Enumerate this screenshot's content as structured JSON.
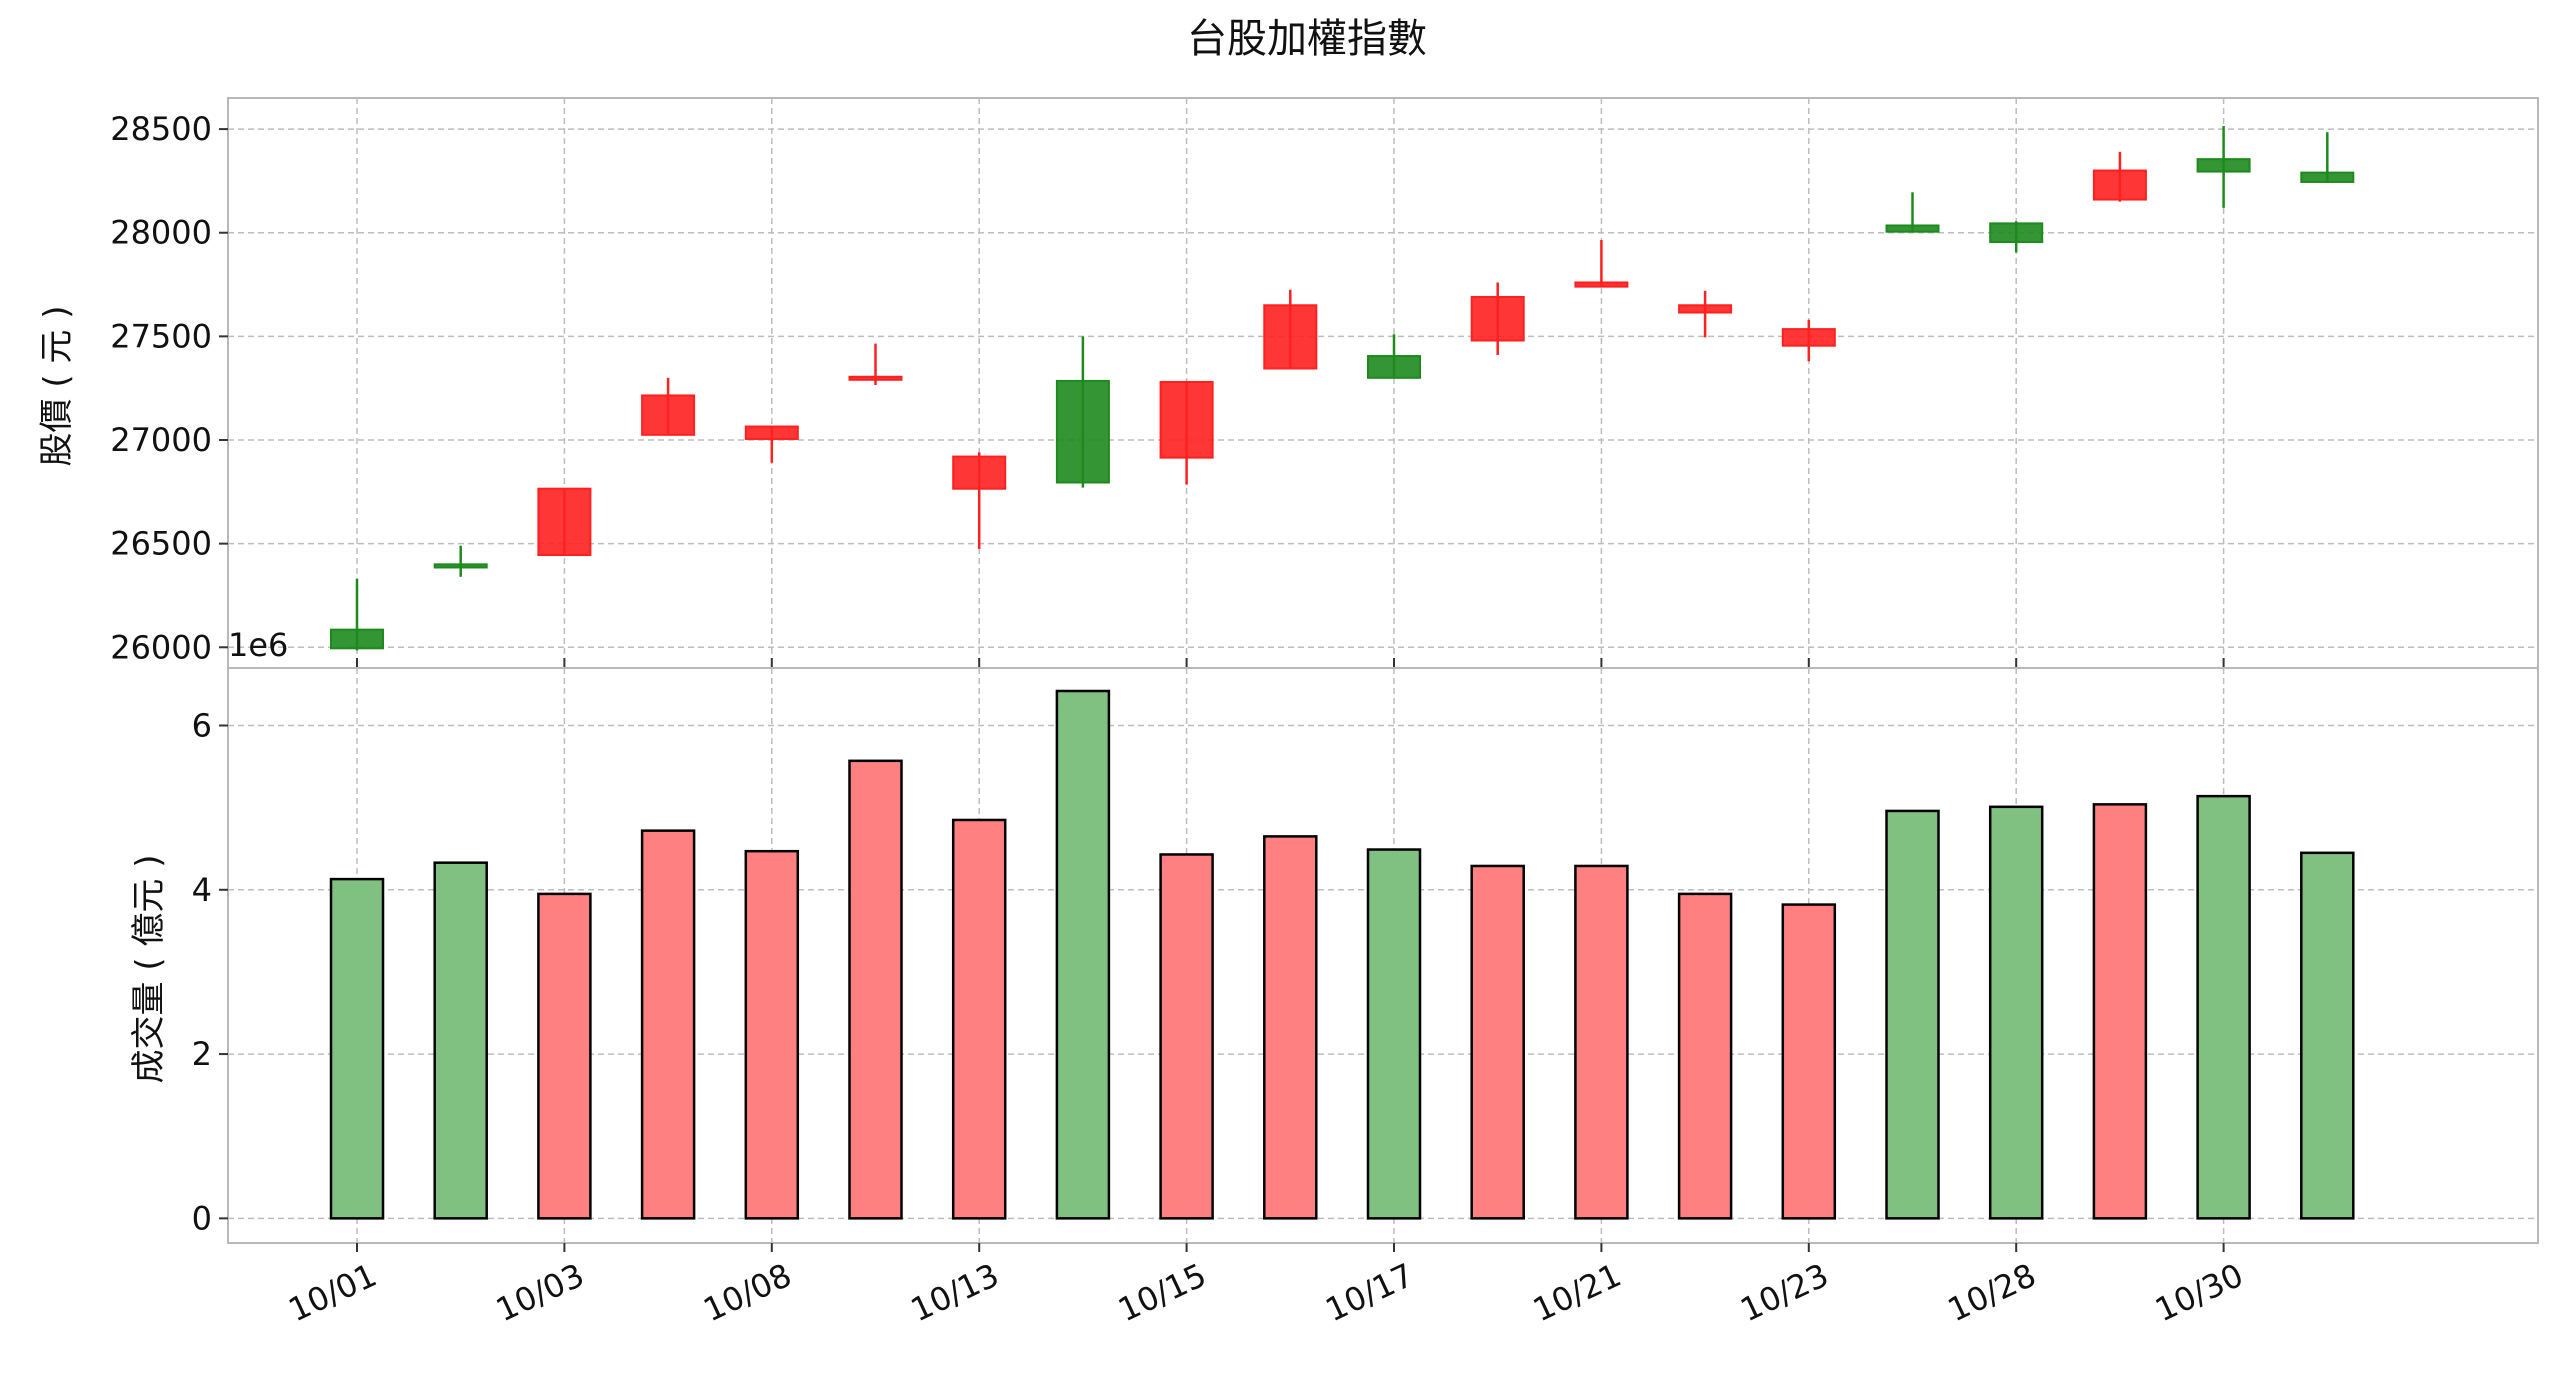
{
  "chart_data": [
    {
      "type": "candlestick",
      "title": "台股加權指數",
      "ylabel": "股價 ( 元 )",
      "xlabel": "",
      "ylim": [
        25900,
        28650
      ],
      "yticks": [
        26000,
        26500,
        27000,
        27500,
        28000,
        28500
      ],
      "offset_text": "1e6",
      "grid": true,
      "up_color": "#ff2020",
      "down_color": "#1e8a1e",
      "candles": [
        {
          "open": 25995,
          "high": 26330,
          "low": 25985,
          "close": 26085,
          "color": "green"
        },
        {
          "open": 26385,
          "high": 26490,
          "low": 26340,
          "close": 26400,
          "color": "green"
        },
        {
          "open": 26445,
          "high": 26765,
          "low": 26445,
          "close": 26765,
          "color": "red"
        },
        {
          "open": 27025,
          "high": 27300,
          "low": 27025,
          "close": 27215,
          "color": "red"
        },
        {
          "open": 27005,
          "high": 27065,
          "low": 26890,
          "close": 27065,
          "color": "red"
        },
        {
          "open": 27300,
          "high": 27465,
          "low": 27265,
          "close": 27305,
          "color": "red"
        },
        {
          "open": 26765,
          "high": 26940,
          "low": 26475,
          "close": 26920,
          "color": "red"
        },
        {
          "open": 27285,
          "high": 27500,
          "low": 26770,
          "close": 26795,
          "color": "green"
        },
        {
          "open": 26915,
          "high": 27285,
          "low": 26785,
          "close": 27280,
          "color": "red"
        },
        {
          "open": 27345,
          "high": 27725,
          "low": 27345,
          "close": 27650,
          "color": "red"
        },
        {
          "open": 27405,
          "high": 27510,
          "low": 27300,
          "close": 27300,
          "color": "green"
        },
        {
          "open": 27480,
          "high": 27760,
          "low": 27410,
          "close": 27690,
          "color": "red"
        },
        {
          "open": 27740,
          "high": 27965,
          "low": 27740,
          "close": 27760,
          "color": "red"
        },
        {
          "open": 27615,
          "high": 27720,
          "low": 27495,
          "close": 27650,
          "color": "red"
        },
        {
          "open": 27455,
          "high": 27580,
          "low": 27380,
          "close": 27535,
          "color": "red"
        },
        {
          "open": 28035,
          "high": 28195,
          "low": 28005,
          "close": 28005,
          "color": "green"
        },
        {
          "open": 28045,
          "high": 28055,
          "low": 27905,
          "close": 27955,
          "color": "green"
        },
        {
          "open": 28160,
          "high": 28390,
          "low": 28150,
          "close": 28300,
          "color": "red"
        },
        {
          "open": 28355,
          "high": 28515,
          "low": 28120,
          "close": 28295,
          "color": "green"
        },
        {
          "open": 28290,
          "high": 28485,
          "low": 28240,
          "close": 28245,
          "color": "green"
        }
      ]
    },
    {
      "type": "bar",
      "title": "",
      "ylabel": "成交量 ( 億元 )",
      "xlabel": "",
      "ylim": [
        -0.3,
        6.7
      ],
      "yticks": [
        0,
        2,
        4,
        6
      ],
      "grid": true,
      "bar_up_color": "#ff8080",
      "bar_down_color": "#80c080",
      "values": [
        4.13,
        4.33,
        3.95,
        4.72,
        4.47,
        5.57,
        4.85,
        6.42,
        4.43,
        4.65,
        4.49,
        4.29,
        4.29,
        3.95,
        3.82,
        4.96,
        5.01,
        5.04,
        5.14,
        4.45
      ],
      "colors": [
        "green",
        "green",
        "red",
        "red",
        "red",
        "red",
        "red",
        "green",
        "red",
        "red",
        "green",
        "red",
        "red",
        "red",
        "red",
        "green",
        "green",
        "red",
        "green",
        "green"
      ]
    }
  ],
  "x_tick_labels": [
    "10/01",
    "10/03",
    "10/08",
    "10/13",
    "10/15",
    "10/17",
    "10/21",
    "10/23",
    "10/28",
    "10/30"
  ],
  "x_tick_indices": [
    0,
    2,
    4,
    6,
    8,
    10,
    12,
    14,
    16,
    18
  ]
}
